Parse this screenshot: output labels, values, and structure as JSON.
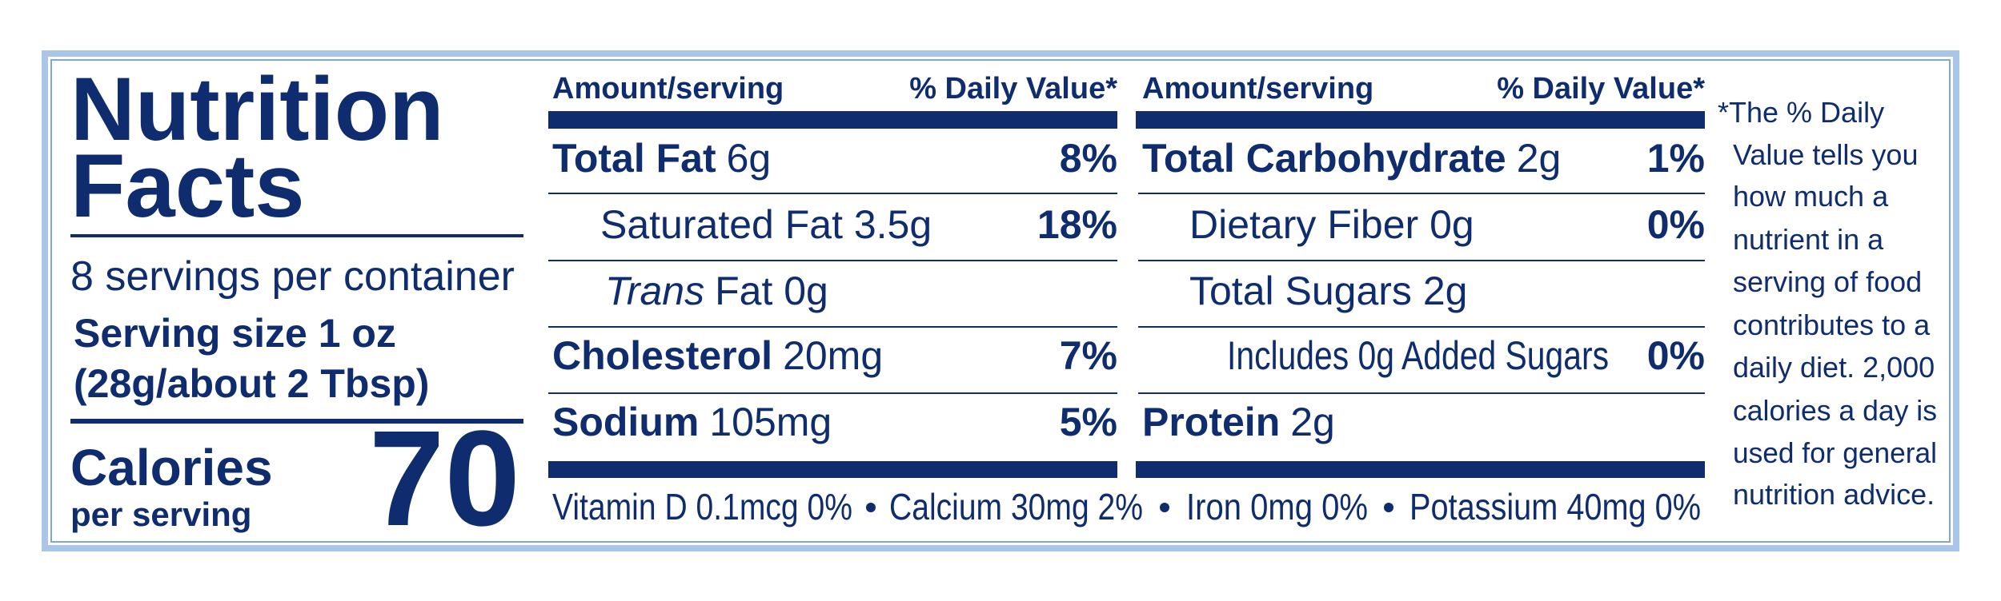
{
  "header": {
    "title_line1": "Nutrition",
    "title_line2": "Facts",
    "servings": "8 servings per container",
    "serving_size_line1": "Serving size 1 oz",
    "serving_size_line2": "(28g/about 2 Tbsp)",
    "calories_label": "Calories",
    "calories_sublabel": "per serving",
    "calories": 70
  },
  "columns": [
    {
      "amount_header": "Amount/serving",
      "dv_header": "% Daily Value*",
      "rows": [
        {
          "bold": "Total Fat",
          "text": "6g",
          "dv": "8%"
        },
        {
          "text": "Saturated Fat 3.5g",
          "dv": "18%"
        },
        {
          "italic": "Trans",
          "text": "Fat 0g"
        },
        {
          "bold": "Cholesterol",
          "text": "20mg",
          "dv": "7%"
        },
        {
          "bold": "Sodium",
          "text": "105mg",
          "dv": "5%"
        }
      ]
    },
    {
      "amount_header": "Amount/serving",
      "dv_header": "% Daily Value*",
      "rows": [
        {
          "bold": "Total Carbohydrate",
          "text": "2g",
          "dv": "1%"
        },
        {
          "text": "Dietary Fiber 0g",
          "dv": "0%"
        },
        {
          "text": "Total Sugars 2g"
        },
        {
          "text": "Includes 0g Added Sugars",
          "dv": "0%"
        },
        {
          "bold": "Protein",
          "text": "2g"
        }
      ]
    }
  ],
  "vitamins": [
    "Vitamin D 0.1mcg 0%",
    "Calcium 30mg 2%",
    "Iron 0mg 0%",
    "Potassium 40mg 0%"
  ],
  "footnote": [
    "*The % Daily",
    "Value tells you",
    "how much a",
    "nutrient in a",
    "serving of food",
    "contributes to a",
    "daily diet. 2,000",
    "calories a day is",
    "used for general",
    "nutrition advice."
  ]
}
